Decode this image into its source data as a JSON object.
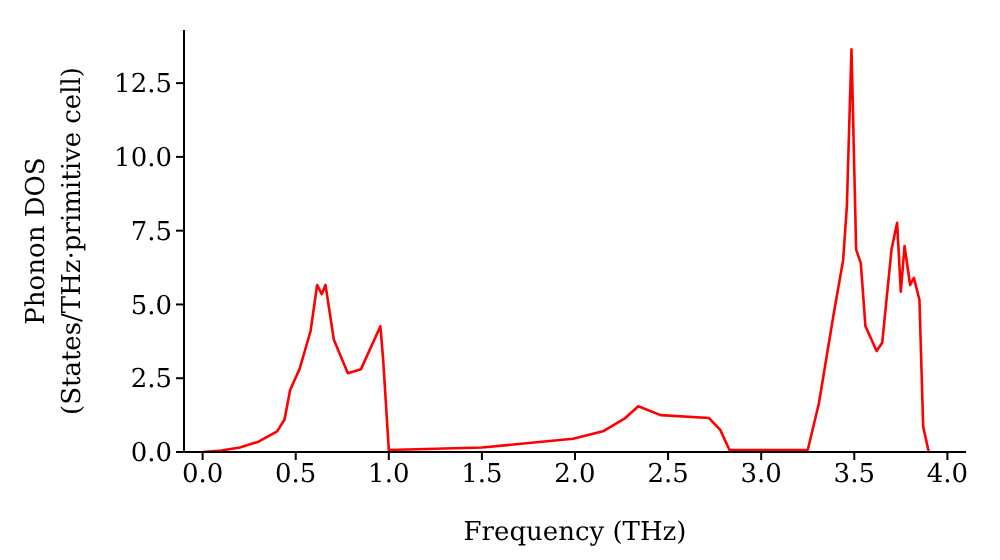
{
  "chart_data": {
    "type": "line",
    "xlabel": "Frequency (THz)",
    "ylabel": "Phonon DOS\n(States/THz·primitive cell)",
    "xlim": [
      -0.1,
      4.1
    ],
    "ylim": [
      0,
      14.3
    ],
    "xticks": [
      {
        "value": 0,
        "label": "0.0"
      },
      {
        "value": 0.5,
        "label": "0.5"
      },
      {
        "value": 1,
        "label": "1.0"
      },
      {
        "value": 1.5,
        "label": "1.5"
      },
      {
        "value": 2,
        "label": "2.0"
      },
      {
        "value": 2.5,
        "label": "2.5"
      },
      {
        "value": 3,
        "label": "3.0"
      },
      {
        "value": 3.5,
        "label": "3.5"
      },
      {
        "value": 4,
        "label": "4.0"
      }
    ],
    "yticks": [
      {
        "value": 0,
        "label": "0.0"
      },
      {
        "value": 2.5,
        "label": "2.5"
      },
      {
        "value": 5,
        "label": "5.0"
      },
      {
        "value": 7.5,
        "label": "7.5"
      },
      {
        "value": 10,
        "label": "10.0"
      },
      {
        "value": 12.5,
        "label": "12.5"
      }
    ],
    "grid": false,
    "legend": false,
    "marker": "none",
    "line_style": "solid",
    "series": [
      {
        "color": "#ff0000",
        "x": [
          0,
          0.1,
          0.2,
          0.3,
          0.4,
          0.44,
          0.47,
          0.52,
          0.58,
          0.615,
          0.64,
          0.66,
          0.705,
          0.78,
          0.85,
          0.955,
          0.97,
          1.0,
          1.5,
          1.99,
          2.15,
          2.27,
          2.34,
          2.46,
          2.72,
          2.78,
          2.83,
          3.25,
          3.31,
          3.39,
          3.44,
          3.46,
          3.485,
          3.51,
          3.535,
          3.56,
          3.62,
          3.65,
          3.7,
          3.73,
          3.75,
          3.77,
          3.8,
          3.82,
          3.85,
          3.87,
          3.9
        ],
        "values": [
          0,
          0.05,
          0.15,
          0.35,
          0.7,
          1.1,
          2.1,
          2.8,
          4.1,
          5.66,
          5.35,
          5.66,
          3.8,
          2.67,
          2.8,
          4.26,
          3.1,
          0.07,
          0.15,
          0.45,
          0.7,
          1.15,
          1.55,
          1.25,
          1.15,
          0.75,
          0.07,
          0.07,
          1.65,
          4.7,
          6.5,
          8.3,
          13.65,
          6.86,
          6.4,
          4.26,
          3.42,
          3.7,
          6.86,
          7.77,
          5.43,
          6.98,
          5.66,
          5.9,
          5.16,
          0.86,
          0
        ]
      }
    ]
  }
}
